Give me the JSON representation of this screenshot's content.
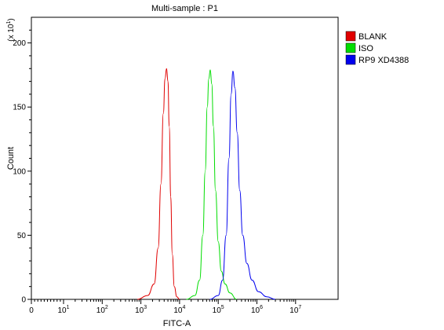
{
  "chart_data": {
    "type": "line",
    "title": "Multi-sample : P1",
    "xlabel": "FITC-A",
    "ylabel": "Count",
    "y_scale_note": "(x 10",
    "y_scale_exp": "1",
    "x_scale": "log",
    "xlim": [
      0,
      10000000
    ],
    "ylim": [
      0,
      220
    ],
    "x_ticks": [
      {
        "value": 0,
        "base": "0",
        "exp": ""
      },
      {
        "value": 10,
        "base": "10",
        "exp": "1"
      },
      {
        "value": 100,
        "base": "10",
        "exp": "2"
      },
      {
        "value": 1000,
        "base": "10",
        "exp": "3"
      },
      {
        "value": 10000,
        "base": "10",
        "exp": "4"
      },
      {
        "value": 100000,
        "base": "10",
        "exp": "5"
      },
      {
        "value": 1000000,
        "base": "10",
        "exp": "6"
      },
      {
        "value": 10000000,
        "base": "10",
        "exp": "7"
      }
    ],
    "y_ticks": [
      "0",
      "50",
      "100",
      "150",
      "200"
    ],
    "grid": false,
    "legend_position": "top-right",
    "series": [
      {
        "name": "BLANK",
        "color": "#e00000",
        "peak_x": 4600,
        "peak_y": 180,
        "x": [
          800,
          1500,
          2200,
          2800,
          3300,
          3800,
          4200,
          4600,
          5000,
          5400,
          5900,
          6500,
          7300,
          8500,
          10000
        ],
        "y": [
          0,
          3,
          12,
          40,
          90,
          145,
          172,
          180,
          170,
          135,
          80,
          35,
          10,
          2,
          0
        ]
      },
      {
        "name": "ISO",
        "color": "#00dd00",
        "peak_x": 62000,
        "peak_y": 179,
        "x": [
          15000,
          25000,
          33000,
          40000,
          46000,
          52000,
          57000,
          62000,
          68000,
          75000,
          85000,
          100000,
          120000,
          150000,
          200000,
          300000
        ],
        "y": [
          0,
          3,
          15,
          50,
          100,
          150,
          172,
          179,
          168,
          135,
          85,
          45,
          22,
          12,
          5,
          0
        ]
      },
      {
        "name": "RP9 XD4388",
        "color": "#0000ee",
        "peak_x": 240000,
        "peak_y": 178,
        "x": [
          60000,
          100000,
          130000,
          160000,
          190000,
          215000,
          240000,
          270000,
          310000,
          360000,
          430000,
          550000,
          750000,
          1100000,
          1800000,
          3000000
        ],
        "y": [
          0,
          3,
          15,
          50,
          110,
          160,
          178,
          165,
          130,
          85,
          50,
          28,
          15,
          6,
          2,
          0
        ]
      }
    ]
  }
}
